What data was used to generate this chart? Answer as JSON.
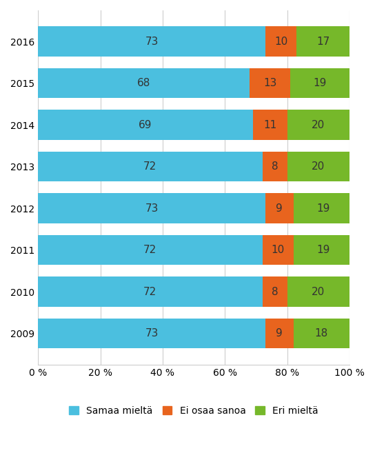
{
  "years": [
    "2016",
    "2015",
    "2014",
    "2013",
    "2012",
    "2011",
    "2010",
    "2009"
  ],
  "samaa_mielta": [
    73,
    68,
    69,
    72,
    73,
    72,
    72,
    73
  ],
  "ei_osaa_sanoa": [
    10,
    13,
    11,
    8,
    9,
    10,
    8,
    9
  ],
  "eri_mielta": [
    17,
    19,
    20,
    20,
    19,
    19,
    20,
    18
  ],
  "colors": {
    "samaa_mielta": "#4BBFDF",
    "ei_osaa_sanoa": "#E8641E",
    "eri_mielta": "#76B82A"
  },
  "legend_labels": [
    "Samaa mieltä",
    "Ei osaa sanoa",
    "Eri mieltä"
  ],
  "xlabel_ticks": [
    0,
    20,
    40,
    60,
    80,
    100
  ],
  "xlabel_tick_labels": [
    "0 %",
    "20 %",
    "40 %",
    "60 %",
    "80 %",
    "100 %"
  ],
  "bar_height": 0.72,
  "background_color": "#ffffff",
  "grid_color": "#cccccc",
  "text_color": "#333333",
  "label_fontsize": 11,
  "tick_fontsize": 10,
  "legend_fontsize": 10
}
